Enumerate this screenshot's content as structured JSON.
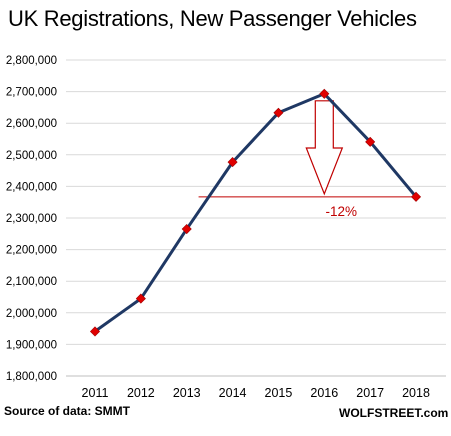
{
  "chart_data": {
    "type": "line",
    "title": "UK Registrations,  New Passenger Vehicles",
    "xlabel": "",
    "ylabel": "",
    "x": [
      "2011",
      "2012",
      "2013",
      "2014",
      "2015",
      "2016",
      "2017",
      "2018"
    ],
    "series": [
      {
        "values": [
          1941000,
          2045000,
          2265000,
          2477000,
          2633000,
          2693000,
          2541000,
          2367000
        ]
      }
    ],
    "ylim": [
      1800000,
      2800000
    ],
    "yticks": [
      "1,800,000",
      "1,900,000",
      "2,000,000",
      "2,100,000",
      "2,200,000",
      "2,300,000",
      "2,400,000",
      "2,500,000",
      "2,600,000",
      "2,700,000",
      "2,800,000"
    ],
    "grid": "horizontal",
    "legend": "none",
    "annotation": {
      "text": "-12%",
      "from_year": "2016",
      "to_year": "2018"
    },
    "colors": {
      "line": "#1f3864",
      "marker": "#e00000",
      "annotation": "#c00000",
      "grid": "#d9d9d9",
      "axis": "#bfbfbf"
    }
  },
  "footer": {
    "source": "Source of data: SMMT",
    "brand": "WOLFSTREET.com"
  }
}
